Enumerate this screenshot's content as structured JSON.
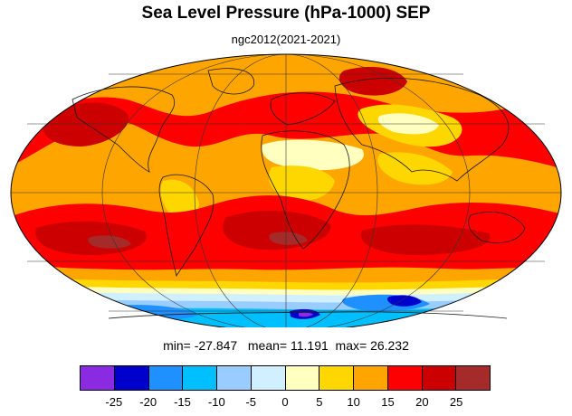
{
  "title": "Sea Level Pressure (hPa-1000) SEP",
  "subtitle": "ngc2012(2021-2021)",
  "stats": {
    "min_label": "min=",
    "min": "-27.847",
    "mean_label": "mean=",
    "mean": "11.191",
    "max_label": "max=",
    "max": "26.232"
  },
  "colorbar": {
    "colors": [
      "#8a2be2",
      "#0000cd",
      "#1e90ff",
      "#00bfff",
      "#99ccff",
      "#d0f0ff",
      "#ffffc0",
      "#ffd700",
      "#ffa500",
      "#ff0000",
      "#cd0000",
      "#a52a2a"
    ],
    "ticks": [
      "-25",
      "-20",
      "-15",
      "-10",
      "-5",
      "0",
      "5",
      "10",
      "15",
      "20",
      "25"
    ]
  },
  "map": {
    "projection": "mollweide",
    "palette": {
      "background": "#ffa500",
      "high": "#ff0000",
      "very_high": "#cd0000",
      "extreme": "#a52a2a",
      "moderate": "#ffd700",
      "low": "#ffffc0",
      "cold_1": "#d0f0ff",
      "cold_2": "#99ccff",
      "cold_3": "#00bfff",
      "cold_4": "#1e90ff",
      "cold_5": "#0000cd",
      "cold_6": "#8a2be2",
      "coast": "#1a1a1a",
      "grid": "#333333"
    }
  }
}
